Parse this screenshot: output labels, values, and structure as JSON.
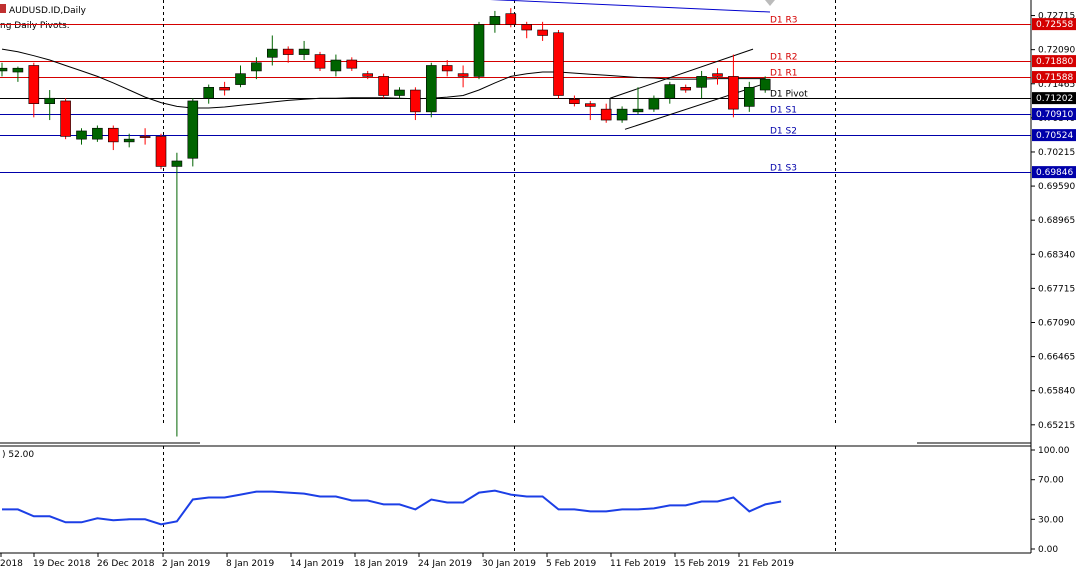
{
  "header": {
    "symbol": "AUDUSD.ID,Daily",
    "indicator": "ng Daily Pivots.",
    "oscillator_label": ") 52.00"
  },
  "colors": {
    "bull": "#006400",
    "bear": "#ff0000",
    "ma": "#000000",
    "trend": "#0000cd",
    "resistance": "#d40000",
    "pivot": "#000000",
    "support": "#0000aa",
    "oscillator": "#1c3fe6",
    "grid": "#000000"
  },
  "chart_data": {
    "type": "candlestick",
    "price_axis": {
      "min": 0.649,
      "max": 0.73,
      "ticks": [
        "0.72715",
        "0.72090",
        "0.71465",
        "0.70840",
        "0.70215",
        "0.69590",
        "0.68965",
        "0.68340",
        "0.67715",
        "0.67090",
        "0.66465",
        "0.65840",
        "0.65215"
      ]
    },
    "date_labels": [
      "2018",
      "19 Dec 2018",
      "26 Dec 2018",
      "2 Jan 2019",
      "8 Jan 2019",
      "14 Jan 2019",
      "18 Jan 2019",
      "24 Jan 2019",
      "30 Jan 2019",
      "5 Feb 2019",
      "11 Feb 2019",
      "15 Feb 2019",
      "21 Feb 2019"
    ],
    "pivots": [
      {
        "name": "D1 R3",
        "value": 0.72558,
        "label": "0.72558"
      },
      {
        "name": "D1 R2",
        "value": 0.7188,
        "label": "0.71880"
      },
      {
        "name": "D1 R1",
        "value": 0.71588,
        "label": "0.71588"
      },
      {
        "name": "D1 Pivot",
        "value": 0.71202,
        "label": "0.71202"
      },
      {
        "name": "D1 S1",
        "value": 0.7091,
        "label": "0.70910"
      },
      {
        "name": "D1 S2",
        "value": 0.70524,
        "label": "0.70524"
      },
      {
        "name": "D1 S3",
        "value": 0.69846,
        "label": "0.69846"
      }
    ],
    "candles": [
      {
        "o": 0.717,
        "h": 0.7185,
        "l": 0.716,
        "c": 0.7175
      },
      {
        "o": 0.7168,
        "h": 0.7178,
        "l": 0.715,
        "c": 0.7175
      },
      {
        "o": 0.718,
        "h": 0.7185,
        "l": 0.7085,
        "c": 0.711
      },
      {
        "o": 0.711,
        "h": 0.7135,
        "l": 0.708,
        "c": 0.712
      },
      {
        "o": 0.7115,
        "h": 0.712,
        "l": 0.7045,
        "c": 0.705
      },
      {
        "o": 0.7045,
        "h": 0.7065,
        "l": 0.7035,
        "c": 0.706
      },
      {
        "o": 0.7045,
        "h": 0.707,
        "l": 0.704,
        "c": 0.7065
      },
      {
        "o": 0.7065,
        "h": 0.707,
        "l": 0.7025,
        "c": 0.704
      },
      {
        "o": 0.704,
        "h": 0.7055,
        "l": 0.703,
        "c": 0.7045
      },
      {
        "o": 0.705,
        "h": 0.7065,
        "l": 0.7035,
        "c": 0.7048
      },
      {
        "o": 0.705,
        "h": 0.7055,
        "l": 0.699,
        "c": 0.6995
      },
      {
        "o": 0.6995,
        "h": 0.702,
        "l": 0.65,
        "c": 0.7005
      },
      {
        "o": 0.701,
        "h": 0.712,
        "l": 0.6995,
        "c": 0.7115
      },
      {
        "o": 0.712,
        "h": 0.7145,
        "l": 0.711,
        "c": 0.714
      },
      {
        "o": 0.714,
        "h": 0.715,
        "l": 0.7125,
        "c": 0.7135
      },
      {
        "o": 0.7145,
        "h": 0.718,
        "l": 0.714,
        "c": 0.7165
      },
      {
        "o": 0.717,
        "h": 0.7195,
        "l": 0.7155,
        "c": 0.7185
      },
      {
        "o": 0.7195,
        "h": 0.7235,
        "l": 0.718,
        "c": 0.721
      },
      {
        "o": 0.721,
        "h": 0.7215,
        "l": 0.7185,
        "c": 0.72
      },
      {
        "o": 0.72,
        "h": 0.7225,
        "l": 0.719,
        "c": 0.721
      },
      {
        "o": 0.72,
        "h": 0.7205,
        "l": 0.717,
        "c": 0.7175
      },
      {
        "o": 0.717,
        "h": 0.72,
        "l": 0.716,
        "c": 0.719
      },
      {
        "o": 0.719,
        "h": 0.7195,
        "l": 0.717,
        "c": 0.7175
      },
      {
        "o": 0.7165,
        "h": 0.717,
        "l": 0.7155,
        "c": 0.716
      },
      {
        "o": 0.716,
        "h": 0.7165,
        "l": 0.712,
        "c": 0.7125
      },
      {
        "o": 0.7125,
        "h": 0.714,
        "l": 0.712,
        "c": 0.7135
      },
      {
        "o": 0.7135,
        "h": 0.714,
        "l": 0.708,
        "c": 0.7095
      },
      {
        "o": 0.7095,
        "h": 0.7185,
        "l": 0.7085,
        "c": 0.718
      },
      {
        "o": 0.718,
        "h": 0.719,
        "l": 0.716,
        "c": 0.717
      },
      {
        "o": 0.7165,
        "h": 0.718,
        "l": 0.714,
        "c": 0.716
      },
      {
        "o": 0.716,
        "h": 0.726,
        "l": 0.7155,
        "c": 0.7255
      },
      {
        "o": 0.7255,
        "h": 0.728,
        "l": 0.724,
        "c": 0.727
      },
      {
        "o": 0.7275,
        "h": 0.7285,
        "l": 0.725,
        "c": 0.7255
      },
      {
        "o": 0.7255,
        "h": 0.726,
        "l": 0.723,
        "c": 0.7245
      },
      {
        "o": 0.7245,
        "h": 0.726,
        "l": 0.7225,
        "c": 0.7235
      },
      {
        "o": 0.724,
        "h": 0.7245,
        "l": 0.712,
        "c": 0.7125
      },
      {
        "o": 0.7118,
        "h": 0.7125,
        "l": 0.7105,
        "c": 0.711
      },
      {
        "o": 0.711,
        "h": 0.7115,
        "l": 0.708,
        "c": 0.7105
      },
      {
        "o": 0.71,
        "h": 0.711,
        "l": 0.7075,
        "c": 0.708
      },
      {
        "o": 0.708,
        "h": 0.7105,
        "l": 0.7075,
        "c": 0.71
      },
      {
        "o": 0.7095,
        "h": 0.714,
        "l": 0.709,
        "c": 0.71
      },
      {
        "o": 0.71,
        "h": 0.7125,
        "l": 0.7095,
        "c": 0.712
      },
      {
        "o": 0.712,
        "h": 0.715,
        "l": 0.711,
        "c": 0.7145
      },
      {
        "o": 0.714,
        "h": 0.7145,
        "l": 0.713,
        "c": 0.7135
      },
      {
        "o": 0.714,
        "h": 0.717,
        "l": 0.712,
        "c": 0.716
      },
      {
        "o": 0.7165,
        "h": 0.7175,
        "l": 0.7145,
        "c": 0.716
      },
      {
        "o": 0.716,
        "h": 0.72,
        "l": 0.7085,
        "c": 0.71
      },
      {
        "o": 0.7105,
        "h": 0.715,
        "l": 0.7095,
        "c": 0.714
      },
      {
        "o": 0.7135,
        "h": 0.716,
        "l": 0.713,
        "c": 0.7155
      }
    ],
    "moving_average": [
      0.721,
      0.7205,
      0.7198,
      0.719,
      0.718,
      0.717,
      0.716,
      0.7148,
      0.7135,
      0.7122,
      0.7112,
      0.7105,
      0.7102,
      0.7102,
      0.7104,
      0.7107,
      0.711,
      0.7113,
      0.7116,
      0.7118,
      0.712,
      0.712,
      0.7121,
      0.7121,
      0.7121,
      0.712,
      0.7119,
      0.712,
      0.7122,
      0.7125,
      0.7135,
      0.7148,
      0.716,
      0.7165,
      0.7168,
      0.7168,
      0.7166,
      0.7164,
      0.7162,
      0.716,
      0.7158,
      0.7157,
      0.7155,
      0.7155,
      0.7155,
      0.7156,
      0.7156,
      0.7156,
      0.7156
    ],
    "trendline": {
      "from": 0.7315,
      "to": 0.7278
    },
    "channel": {
      "upper_start": 0.712,
      "upper_end": 0.721,
      "lower_start": 0.7063,
      "lower_end": 0.715
    },
    "oscillator": {
      "axis_ticks": [
        "100.00",
        "70.00",
        "30.00",
        "0.00"
      ],
      "min": 0,
      "max": 100,
      "values": [
        40,
        40,
        33,
        33,
        27,
        27,
        31,
        29,
        30,
        30,
        25,
        28,
        50,
        52,
        52,
        55,
        58,
        58,
        57,
        56,
        53,
        53,
        49,
        49,
        45,
        45,
        40,
        50,
        47,
        47,
        57,
        59,
        55,
        53,
        53,
        40,
        40,
        38,
        38,
        40,
        40,
        41,
        44,
        44,
        48,
        48,
        52,
        38,
        45,
        48
      ]
    }
  }
}
